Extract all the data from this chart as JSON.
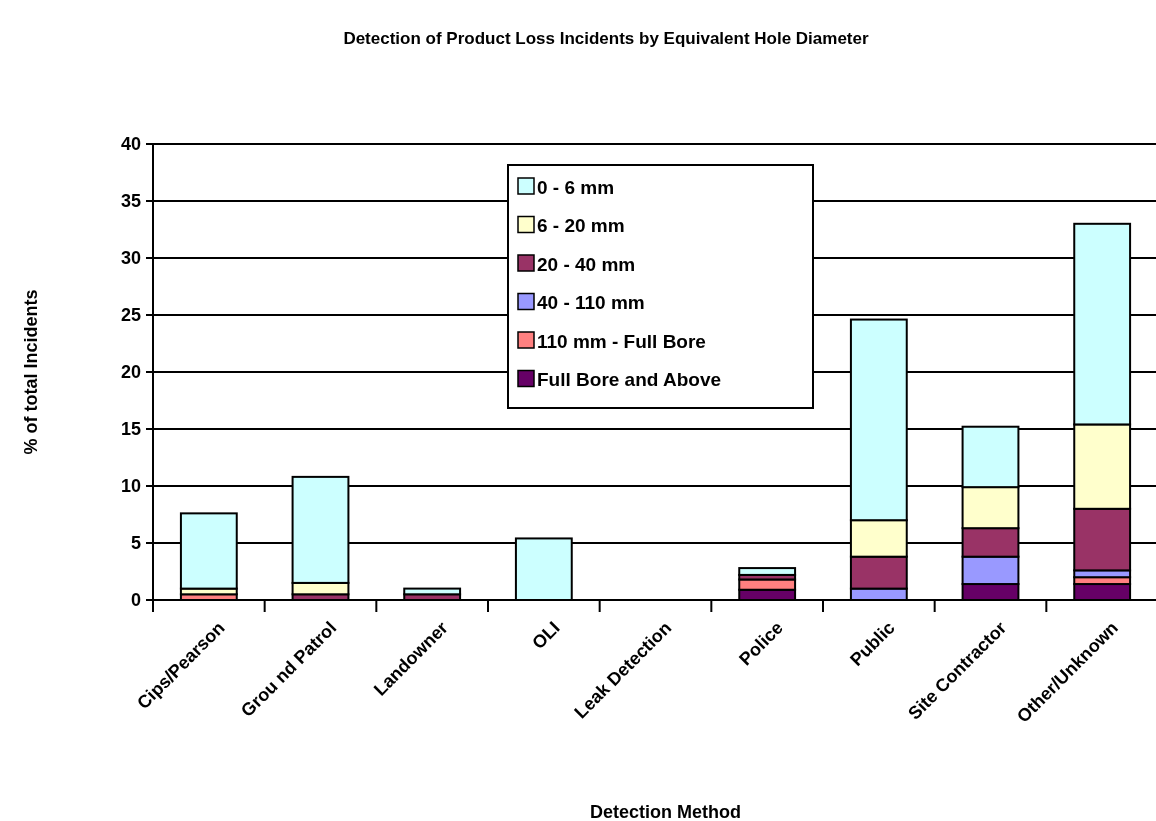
{
  "chart_data": {
    "type": "bar",
    "title": "Detection of Product Loss Incidents by Equivalent Hole Diameter",
    "xlabel": "Detection Method",
    "ylabel": "% of total Incidents",
    "categories": [
      "Cips/Pearson",
      "Grou nd Patrol",
      "Landowner",
      "OLI",
      "Leak Detection",
      "Police",
      "Public",
      "Site Contractor",
      "Other/Unknown"
    ],
    "stacked": true,
    "ylim": [
      0,
      40
    ],
    "yticks": [
      0,
      5,
      10,
      15,
      20,
      25,
      30,
      35,
      40
    ],
    "grid": "y",
    "legend": "top",
    "series": [
      {
        "name": "Full Bore and Above",
        "color": "#660066",
        "values": [
          0,
          0,
          0,
          0,
          0,
          0.9,
          0,
          1.4,
          1.4
        ]
      },
      {
        "name": "110 mm - Full Bore",
        "color": "#ff8080",
        "values": [
          0.5,
          0,
          0,
          0,
          0,
          0.9,
          0,
          0,
          0.6
        ]
      },
      {
        "name": "40 - 110 mm",
        "color": "#9999ff",
        "values": [
          0,
          0,
          0,
          0,
          0,
          0,
          1.0,
          2.4,
          0.6
        ]
      },
      {
        "name": "20 - 40 mm",
        "color": "#993366",
        "values": [
          0,
          0.5,
          0.5,
          0,
          0,
          0.4,
          2.8,
          2.5,
          5.4
        ]
      },
      {
        "name": "6 - 20 mm",
        "color": "#ffffcc",
        "values": [
          0.5,
          1.0,
          0,
          0,
          0,
          0,
          3.2,
          3.6,
          7.4
        ]
      },
      {
        "name": "0 - 6 mm",
        "color": "#ccffff",
        "values": [
          6.6,
          9.3,
          0.5,
          5.4,
          0,
          0.6,
          17.6,
          5.3,
          17.6
        ]
      }
    ]
  }
}
